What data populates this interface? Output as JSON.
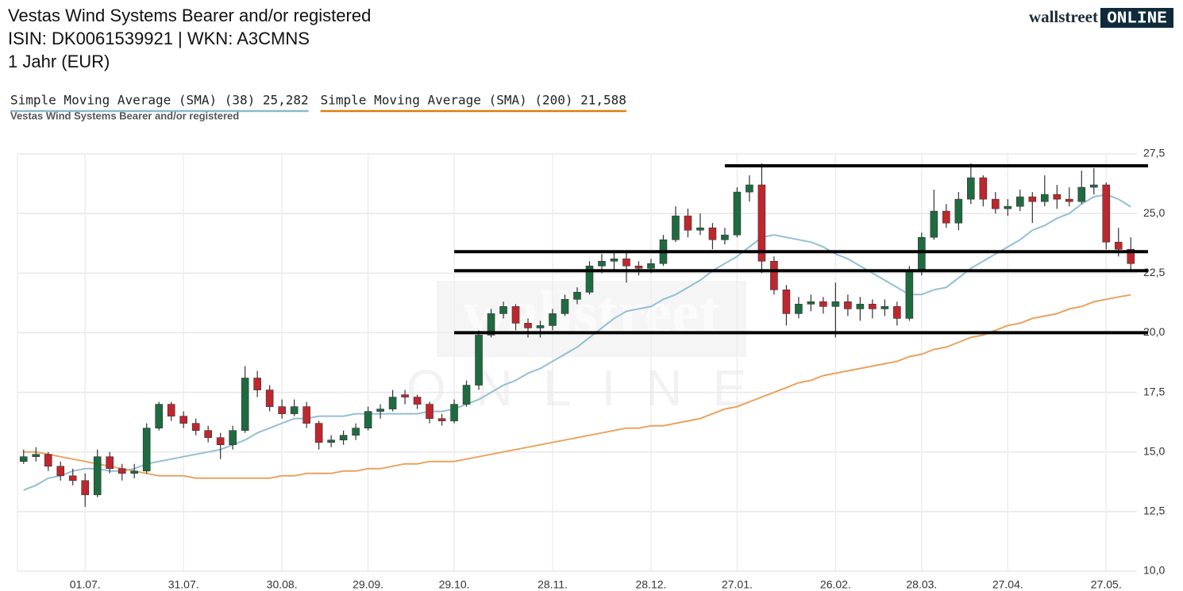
{
  "header": {
    "title": "Vestas Wind Systems Bearer and/or registered",
    "ids": "ISIN: DK0061539921  | WKN: A3CMNS",
    "period": "1 Jahr (EUR)"
  },
  "logo": {
    "brand": "wallstreet",
    "badge": "ONLINE"
  },
  "chart_data": {
    "type": "candlestick",
    "categories": [
      null,
      null,
      null,
      null,
      null,
      "01.07.",
      null,
      null,
      null,
      null,
      null,
      null,
      null,
      "31.07.",
      null,
      null,
      null,
      null,
      null,
      null,
      null,
      "30.08.",
      null,
      null,
      null,
      null,
      null,
      null,
      "29.09.",
      null,
      null,
      null,
      null,
      null,
      null,
      "29.10.",
      null,
      null,
      null,
      null,
      null,
      null,
      null,
      "28.11.",
      null,
      null,
      null,
      null,
      null,
      null,
      null,
      "28.12.",
      null,
      null,
      null,
      null,
      null,
      null,
      "27.01.",
      null,
      null,
      null,
      null,
      null,
      null,
      null,
      "26.02.",
      null,
      null,
      null,
      null,
      null,
      null,
      "28.03.",
      null,
      null,
      null,
      null,
      null,
      null,
      "27.04.",
      null,
      null,
      null,
      null,
      null,
      null,
      null,
      "27.05.",
      null,
      null
    ],
    "ohlc": {
      "name": "Vestas Wind Systems Bearer and/or registered",
      "up_color": "#1f6b40",
      "down_color": "#c0262d",
      "open": [
        14.6,
        14.8,
        14.9,
        14.4,
        14.0,
        13.8,
        13.2,
        14.8,
        14.3,
        14.1,
        14.2,
        16.0,
        17.0,
        16.5,
        16.2,
        15.9,
        15.6,
        15.3,
        15.9,
        18.1,
        17.6,
        16.9,
        16.6,
        16.9,
        16.2,
        15.4,
        15.5,
        15.7,
        16.0,
        16.7,
        16.8,
        17.4,
        17.3,
        17.0,
        16.4,
        16.3,
        17.0,
        17.8,
        19.9,
        20.8,
        21.1,
        20.4,
        20.2,
        20.3,
        20.8,
        21.4,
        21.7,
        22.8,
        23.0,
        23.1,
        22.8,
        22.7,
        22.9,
        23.9,
        24.9,
        24.3,
        24.4,
        23.9,
        24.1,
        25.9,
        26.2,
        23.0,
        21.8,
        20.8,
        21.2,
        21.3,
        21.1,
        21.3,
        21.0,
        21.2,
        21.0,
        21.1,
        20.6,
        22.6,
        24.0,
        25.1,
        24.6,
        25.6,
        26.5,
        25.6,
        25.2,
        25.3,
        25.7,
        25.5,
        25.8,
        25.6,
        25.5,
        26.1,
        26.2,
        23.8,
        23.5
      ],
      "high": [
        15.1,
        15.2,
        15.0,
        14.6,
        14.3,
        14.1,
        15.1,
        15.0,
        14.5,
        14.5,
        16.2,
        17.1,
        17.1,
        16.7,
        16.4,
        16.1,
        15.8,
        16.1,
        18.6,
        18.4,
        17.8,
        17.2,
        17.2,
        17.1,
        16.3,
        15.7,
        15.9,
        16.2,
        16.9,
        17.0,
        17.6,
        17.6,
        17.4,
        17.1,
        16.6,
        17.2,
        18.0,
        20.1,
        21.0,
        21.3,
        21.2,
        20.6,
        20.5,
        21.0,
        21.6,
        21.9,
        23.0,
        23.3,
        23.4,
        23.4,
        23.0,
        23.1,
        24.1,
        25.3,
        25.2,
        25.0,
        24.6,
        24.4,
        26.1,
        26.6,
        27.1,
        23.2,
        22.0,
        21.5,
        21.6,
        21.5,
        22.1,
        21.6,
        21.5,
        21.4,
        21.4,
        21.3,
        22.8,
        24.2,
        26.0,
        25.4,
        25.9,
        27.1,
        26.6,
        25.9,
        25.6,
        26.0,
        25.9,
        26.6,
        26.2,
        26.1,
        26.8,
        26.9,
        26.3,
        24.4,
        24.0
      ],
      "low": [
        14.5,
        14.6,
        14.2,
        13.8,
        13.6,
        12.7,
        13.1,
        14.1,
        13.8,
        13.9,
        14.1,
        15.9,
        16.3,
        16.0,
        15.7,
        15.4,
        14.7,
        15.1,
        15.8,
        17.3,
        16.7,
        16.4,
        16.5,
        16.0,
        15.1,
        15.2,
        15.3,
        15.5,
        15.9,
        16.4,
        16.7,
        17.0,
        16.8,
        16.2,
        16.1,
        16.2,
        16.9,
        17.6,
        19.8,
        20.6,
        20.1,
        19.8,
        19.8,
        20.1,
        20.7,
        21.2,
        21.6,
        22.5,
        22.6,
        22.1,
        22.4,
        22.5,
        22.8,
        23.8,
        24.0,
        24.1,
        23.5,
        23.7,
        24.0,
        25.5,
        22.5,
        21.6,
        20.3,
        20.6,
        20.9,
        20.8,
        19.8,
        20.7,
        20.5,
        20.6,
        20.7,
        20.3,
        20.5,
        22.4,
        23.9,
        24.4,
        24.3,
        25.4,
        25.3,
        25.0,
        24.9,
        25.1,
        24.6,
        25.3,
        25.2,
        25.3,
        25.4,
        25.8,
        23.5,
        23.2,
        22.6
      ],
      "close": [
        14.8,
        14.9,
        14.4,
        14.0,
        13.8,
        13.2,
        14.8,
        14.3,
        14.1,
        14.2,
        16.0,
        17.0,
        16.5,
        16.2,
        15.9,
        15.6,
        15.3,
        15.9,
        18.1,
        17.6,
        16.9,
        16.6,
        16.9,
        16.2,
        15.4,
        15.5,
        15.7,
        16.0,
        16.7,
        16.8,
        17.3,
        17.3,
        17.0,
        16.4,
        16.3,
        17.0,
        17.8,
        19.9,
        20.8,
        21.1,
        20.4,
        20.2,
        20.3,
        20.8,
        21.4,
        21.7,
        22.8,
        23.0,
        23.1,
        22.8,
        22.7,
        22.9,
        23.9,
        24.9,
        24.3,
        24.4,
        23.9,
        24.1,
        25.9,
        26.2,
        23.0,
        21.8,
        20.8,
        21.2,
        21.3,
        21.1,
        21.3,
        21.0,
        21.2,
        21.0,
        21.1,
        20.6,
        22.6,
        24.0,
        25.1,
        24.6,
        25.6,
        26.5,
        25.6,
        25.2,
        25.3,
        25.7,
        25.5,
        25.8,
        25.6,
        25.5,
        26.1,
        26.2,
        23.8,
        23.5,
        22.9
      ]
    },
    "series": [
      {
        "name": "Simple Moving Average (SMA) (38)",
        "last_label": "25,282",
        "color": "#93bfd6",
        "values": [
          13.4,
          13.6,
          13.9,
          14.0,
          14.2,
          14.3,
          14.3,
          14.2,
          14.2,
          14.3,
          14.5,
          14.6,
          14.7,
          14.8,
          14.9,
          15.0,
          15.1,
          15.3,
          15.5,
          15.8,
          16.0,
          16.2,
          16.4,
          16.4,
          16.5,
          16.5,
          16.5,
          16.6,
          16.6,
          16.6,
          16.6,
          16.6,
          16.6,
          16.7,
          16.7,
          16.8,
          17.0,
          17.2,
          17.5,
          17.8,
          18.0,
          18.3,
          18.5,
          18.8,
          19.1,
          19.4,
          19.8,
          20.2,
          20.6,
          20.9,
          21.0,
          21.1,
          21.4,
          21.6,
          21.9,
          22.2,
          22.6,
          22.9,
          23.2,
          23.6,
          24.0,
          24.1,
          24.0,
          23.9,
          23.8,
          23.6,
          23.3,
          23.1,
          22.8,
          22.5,
          22.2,
          21.9,
          21.6,
          21.6,
          21.8,
          21.9,
          22.3,
          22.7,
          23.0,
          23.3,
          23.6,
          23.9,
          24.3,
          24.5,
          24.8,
          25.0,
          25.4,
          25.7,
          25.8,
          25.6,
          25.282
        ]
      },
      {
        "name": "Simple Moving Average (SMA) (200)",
        "last_label": "21,588",
        "color": "#e9a35f",
        "values": [
          15.0,
          15.0,
          14.9,
          14.8,
          14.7,
          14.6,
          14.5,
          14.4,
          14.3,
          14.2,
          14.1,
          14.0,
          14.0,
          14.0,
          13.9,
          13.9,
          13.9,
          13.9,
          13.9,
          13.9,
          13.9,
          14.0,
          14.0,
          14.1,
          14.1,
          14.1,
          14.2,
          14.2,
          14.3,
          14.3,
          14.4,
          14.5,
          14.5,
          14.6,
          14.6,
          14.6,
          14.7,
          14.8,
          14.9,
          15.0,
          15.1,
          15.2,
          15.3,
          15.4,
          15.5,
          15.6,
          15.7,
          15.8,
          15.9,
          16.0,
          16.0,
          16.1,
          16.1,
          16.2,
          16.3,
          16.4,
          16.6,
          16.8,
          16.9,
          17.1,
          17.3,
          17.5,
          17.7,
          17.9,
          18.0,
          18.2,
          18.3,
          18.4,
          18.5,
          18.6,
          18.7,
          18.8,
          19.0,
          19.1,
          19.3,
          19.4,
          19.6,
          19.8,
          19.9,
          20.1,
          20.3,
          20.4,
          20.6,
          20.7,
          20.8,
          21.0,
          21.1,
          21.3,
          21.4,
          21.5,
          21.588
        ]
      }
    ],
    "levels": [
      {
        "value": 27.0,
        "start": 57
      },
      {
        "value": 23.4,
        "start": 35
      },
      {
        "value": 22.6,
        "start": 35
      },
      {
        "value": 20.0,
        "start": 35
      }
    ],
    "ylim": [
      10,
      27.5
    ],
    "yticks": [
      {
        "value": 10,
        "label": "10,0"
      },
      {
        "value": 12.5,
        "label": "12,5"
      },
      {
        "value": 15,
        "label": "15,0"
      },
      {
        "value": 17.5,
        "label": "17,5"
      },
      {
        "value": 20,
        "label": "20,0"
      },
      {
        "value": 22.5,
        "label": "22,5"
      },
      {
        "value": 25,
        "label": "25,0"
      },
      {
        "value": 27.5,
        "label": "27,5"
      }
    ],
    "grid": true
  }
}
